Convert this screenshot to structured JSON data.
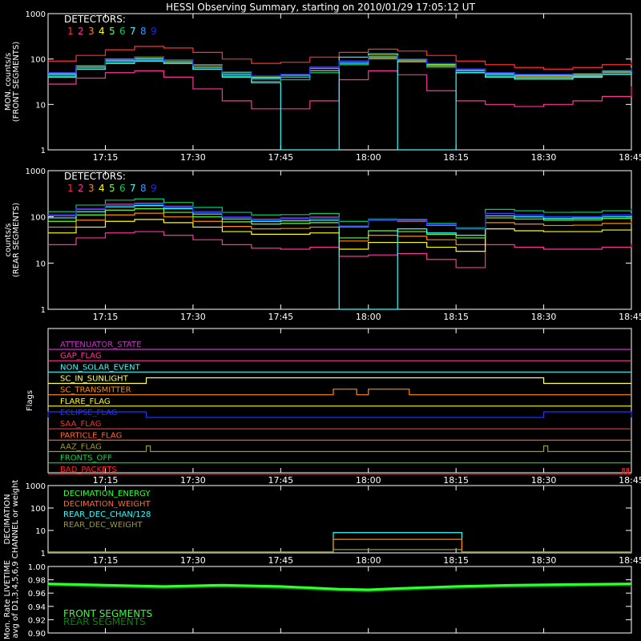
{
  "title": "HESSI Observing Summary, starting on 2010/01/29 17:05:12 UT",
  "colors": {
    "fg": "#ffffff",
    "det": [
      "#ff3030",
      "#ff3399",
      "#ff8c00",
      "#ffff00",
      "#66ff33",
      "#00cc66",
      "#33ffff",
      "#3399ff",
      "#2222ff"
    ]
  },
  "time_axis": {
    "start_min": 1025.2,
    "end_min": 1125,
    "ticks": [
      {
        "min": 1035,
        "label": "17:15"
      },
      {
        "min": 1050,
        "label": "17:30"
      },
      {
        "min": 1065,
        "label": "17:45"
      },
      {
        "min": 1080,
        "label": "18:00"
      },
      {
        "min": 1095,
        "label": "18:15"
      },
      {
        "min": 1110,
        "label": "18:30"
      },
      {
        "min": 1125,
        "label": "18:45"
      }
    ]
  },
  "chart_data": [
    {
      "type": "line",
      "id": "front",
      "ylabel": [
        "MON. counts/s",
        "(FRONT SEGMENTS)"
      ],
      "log_y": true,
      "ylim": [
        1,
        1000
      ],
      "yticks": [
        "1",
        "10",
        "100",
        "1000"
      ],
      "legend_title": "DETECTORS:",
      "legend": [
        "1",
        "2",
        "3",
        "4",
        "5",
        "6",
        "7",
        "8",
        "9"
      ],
      "x": [
        1025.2,
        1030,
        1035,
        1040,
        1045,
        1050,
        1055,
        1060,
        1065,
        1070,
        1075,
        1080,
        1085,
        1090,
        1095,
        1100,
        1105,
        1110,
        1115,
        1120,
        1125
      ],
      "series": [
        {
          "name": "1",
          "values": [
            90,
            120,
            160,
            190,
            175,
            140,
            100,
            80,
            85,
            110,
            140,
            165,
            150,
            120,
            90,
            75,
            65,
            60,
            65,
            75,
            85
          ]
        },
        {
          "name": "2",
          "values": [
            28,
            38,
            50,
            55,
            40,
            22,
            12,
            8,
            8,
            12,
            35,
            55,
            45,
            20,
            12,
            10,
            9,
            10,
            12,
            15,
            25
          ]
        },
        {
          "name": "3",
          "values": [
            45,
            65,
            90,
            100,
            85,
            65,
            45,
            38,
            40,
            55,
            80,
            105,
            90,
            70,
            55,
            45,
            40,
            40,
            42,
            50,
            58
          ]
        },
        {
          "name": "4",
          "values": [
            50,
            72,
            100,
            110,
            95,
            75,
            52,
            42,
            45,
            65,
            90,
            120,
            100,
            80,
            60,
            50,
            45,
            45,
            48,
            55,
            65
          ]
        },
        {
          "name": "5",
          "values": [
            48,
            70,
            95,
            105,
            92,
            72,
            50,
            40,
            44,
            62,
            88,
            115,
            98,
            76,
            58,
            48,
            44,
            44,
            46,
            54,
            62
          ]
        },
        {
          "name": "6",
          "values": [
            42,
            60,
            82,
            92,
            80,
            60,
            42,
            32,
            35,
            50,
            75,
            100,
            86,
            66,
            50,
            42,
            38,
            38,
            40,
            46,
            54
          ]
        },
        {
          "name": "7",
          "values": [
            40,
            60,
            80,
            90,
            80,
            60,
            40,
            30,
            1,
            1,
            110,
            130,
            1,
            1,
            50,
            40,
            36,
            36,
            40,
            46,
            55
          ]
        },
        {
          "name": "8",
          "values": [
            46,
            66,
            88,
            98,
            86,
            66,
            46,
            36,
            40,
            56,
            82,
            108,
            94,
            72,
            54,
            46,
            42,
            42,
            44,
            52,
            60
          ]
        },
        {
          "name": "9",
          "values": [
            50,
            72,
            98,
            108,
            94,
            74,
            52,
            42,
            46,
            64,
            90,
            118,
            100,
            80,
            60,
            50,
            46,
            46,
            48,
            56,
            64
          ]
        }
      ]
    },
    {
      "type": "line",
      "id": "rear",
      "ylabel": [
        "counts/s",
        "(REAR SEGMENTS)"
      ],
      "log_y": true,
      "ylim": [
        1,
        1000
      ],
      "yticks": [
        "1",
        "10",
        "100",
        "1000"
      ],
      "legend_title": "DETECTORS:",
      "legend": [
        "1",
        "2",
        "3",
        "4",
        "5",
        "6",
        "7",
        "8",
        "9"
      ],
      "x": [
        1025.2,
        1030,
        1035,
        1040,
        1045,
        1050,
        1055,
        1060,
        1065,
        1070,
        1075,
        1080,
        1085,
        1090,
        1095,
        1100,
        1105,
        1110,
        1115,
        1120,
        1125
      ],
      "series": [
        {
          "name": "1",
          "values": [
            110,
            150,
            190,
            200,
            170,
            130,
            100,
            90,
            95,
            100,
            60,
            85,
            80,
            65,
            55,
            120,
            110,
            100,
            100,
            110,
            120
          ]
        },
        {
          "name": "2",
          "values": [
            25,
            35,
            45,
            48,
            40,
            32,
            25,
            21,
            20,
            22,
            14,
            15,
            16,
            12,
            8,
            25,
            22,
            20,
            20,
            22,
            26
          ]
        },
        {
          "name": "3",
          "values": [
            60,
            85,
            110,
            120,
            100,
            80,
            62,
            55,
            56,
            60,
            30,
            40,
            38,
            32,
            25,
            75,
            70,
            65,
            66,
            72,
            80
          ]
        },
        {
          "name": "4",
          "values": [
            45,
            60,
            80,
            88,
            75,
            60,
            48,
            42,
            42,
            45,
            20,
            28,
            28,
            22,
            18,
            55,
            50,
            48,
            48,
            52,
            58
          ]
        },
        {
          "name": "5",
          "values": [
            80,
            110,
            140,
            150,
            125,
            100,
            78,
            70,
            72,
            75,
            35,
            50,
            48,
            42,
            35,
            95,
            90,
            85,
            86,
            92,
            100
          ]
        },
        {
          "name": "6",
          "values": [
            130,
            180,
            230,
            245,
            205,
            160,
            125,
            110,
            112,
            118,
            80,
            90,
            88,
            72,
            58,
            145,
            135,
            125,
            126,
            135,
            150
          ]
        },
        {
          "name": "7",
          "values": [
            95,
            130,
            165,
            175,
            150,
            115,
            90,
            80,
            82,
            85,
            1,
            1,
            55,
            45,
            40,
            105,
            100,
            92,
            94,
            100,
            110
          ]
        },
        {
          "name": "8",
          "values": [
            105,
            145,
            180,
            190,
            160,
            125,
            98,
            86,
            90,
            95,
            62,
            86,
            82,
            66,
            55,
            118,
            108,
            100,
            100,
            108,
            118
          ]
        },
        {
          "name": "9",
          "values": [
            108,
            148,
            185,
            195,
            165,
            128,
            100,
            88,
            92,
            98,
            64,
            88,
            84,
            68,
            56,
            120,
            110,
            102,
            102,
            110,
            120
          ]
        }
      ]
    },
    {
      "type": "line",
      "id": "flags",
      "ylabel": [
        "Flags"
      ],
      "flags": [
        {
          "label": "ATTENUATOR_STATE",
          "color": "#cc33cc",
          "bumps": []
        },
        {
          "label": "GAP_FLAG",
          "color": "#ff3399",
          "bumps": []
        },
        {
          "label": "NON_SOLAR_EVENT",
          "color": "#33ffff",
          "bumps": []
        },
        {
          "label": "SC_IN_SUNLIGHT",
          "color": "#ffff66",
          "bumps": [
            [
              1042,
              1110
            ]
          ]
        },
        {
          "label": "SC_TRANSMITTER",
          "color": "#ff8c00",
          "bumps": [
            [
              1074,
              1078
            ],
            [
              1080,
              1087
            ]
          ]
        },
        {
          "label": "FLARE_FLAG",
          "color": "#ffff00",
          "bumps": []
        },
        {
          "label": "ECLIPSE_FLAG",
          "color": "#2233ff",
          "bumps": [
            [
              1025.2,
              1042
            ],
            [
              1110,
              1125
            ]
          ]
        },
        {
          "label": "SAA_FLAG",
          "color": "#ff3030",
          "bumps": []
        },
        {
          "label": "PARTICLE_FLAG",
          "color": "#ff6633",
          "bumps": []
        },
        {
          "label": "AAZ_FLAG",
          "color": "#999933",
          "bumps": [
            [
              1042,
              1042.7
            ],
            [
              1110,
              1110.7
            ]
          ]
        },
        {
          "label": "FRONTS_OFF",
          "color": "#00dd44",
          "bumps": []
        },
        {
          "label": "BAD_PACKETS",
          "color": "#ff2222",
          "bumps": [
            [
              1123.5,
              1123.8
            ],
            [
              1124.2,
              1124.5
            ]
          ]
        }
      ]
    },
    {
      "type": "line",
      "id": "decimation",
      "ylabel": [
        "DECIMATION",
        "CHANNEL or weight"
      ],
      "log_y": true,
      "ylim": [
        1,
        1000
      ],
      "yticks": [
        "1",
        "10",
        "100",
        "1000"
      ],
      "legend": [
        {
          "label": "DECIMATION_ENERGY",
          "color": "#33ff33"
        },
        {
          "label": "DECIMATION_WEIGHT",
          "color": "#ff6633"
        },
        {
          "label": "REAR_DEC_CHAN/128",
          "color": "#33ffff"
        },
        {
          "label": "REAR_DEC_WEIGHT",
          "color": "#999933"
        }
      ],
      "steps": [
        {
          "color": "#33ffff",
          "start": 1074,
          "end": 1096,
          "value": 8
        },
        {
          "color": "#ff8c00",
          "start": 1074,
          "end": 1096,
          "value": 4
        },
        {
          "color": "#999933",
          "start": 1074,
          "end": 1096,
          "value": 1.4
        }
      ]
    },
    {
      "type": "line",
      "id": "livetime",
      "ylabel": [
        "Mon. Rate LIVETIME",
        "avg of D1,3,4,5,6,9"
      ],
      "ylim": [
        0.9,
        1.0
      ],
      "yticks": [
        "0.90",
        "0.92",
        "0.94",
        "0.96",
        "0.98",
        "1.00"
      ],
      "legend": [
        {
          "label": "FRONT SEGMENTS",
          "color": "#33ff33"
        },
        {
          "label": "REAR SEGMENTS",
          "color": "#008800"
        }
      ],
      "x": [
        1025.2,
        1035,
        1045,
        1055,
        1065,
        1075,
        1080,
        1085,
        1095,
        1105,
        1115,
        1125
      ],
      "front": [
        0.974,
        0.972,
        0.97,
        0.972,
        0.97,
        0.966,
        0.965,
        0.967,
        0.97,
        0.972,
        0.973,
        0.974
      ],
      "rear": [
        0.973,
        0.971,
        0.969,
        0.971,
        0.969,
        0.965,
        0.964,
        0.966,
        0.969,
        0.971,
        0.972,
        0.973
      ]
    }
  ]
}
